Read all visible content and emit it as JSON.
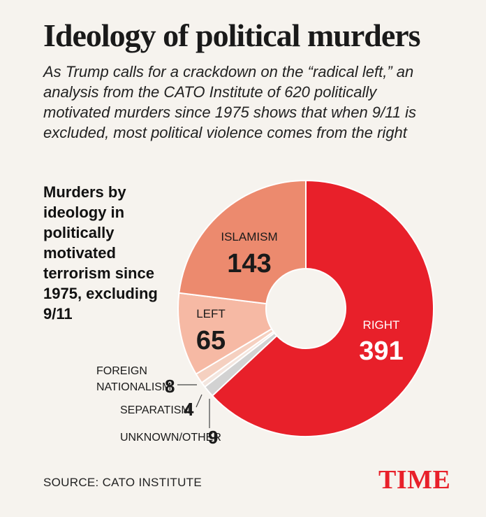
{
  "title": "Ideology of political murders",
  "subtitle": "As Trump calls for a crackdown on the “radical left,” an analysis from the CATO Institute of 620 politically motivated murders since 1975 shows that when 9/11 is excluded, most political violence comes from the right",
  "source": "SOURCE: CATO INSTITUTE",
  "logo": "TIME",
  "chart_data": {
    "type": "pie",
    "style": "donut",
    "title": "Murders by ideology in politically motivated terrorism since 1975, excluding 9/11",
    "categories": [
      "RIGHT",
      "UNKNOWN/OTHER",
      "SEPARATISM",
      "FOREIGN NATIONALISM",
      "LEFT",
      "ISLAMISM"
    ],
    "values": [
      391,
      9,
      4,
      8,
      65,
      143
    ],
    "colors": [
      "#e8202a",
      "#d2d2d2",
      "#f3e6df",
      "#f5d0c0",
      "#f6b9a4",
      "#ec8a6e"
    ],
    "label_sets": [
      {
        "name": "RIGHT",
        "value": "391"
      },
      {
        "name": "UNKNOWN/OTHER",
        "value": "9"
      },
      {
        "name": "SEPARATISM",
        "value": "4"
      },
      {
        "name": "FOREIGN",
        "name2": "NATIONALISM",
        "value": "8"
      },
      {
        "name": "LEFT",
        "value": "65"
      },
      {
        "name": "ISLAMISM",
        "value": "143"
      }
    ]
  }
}
